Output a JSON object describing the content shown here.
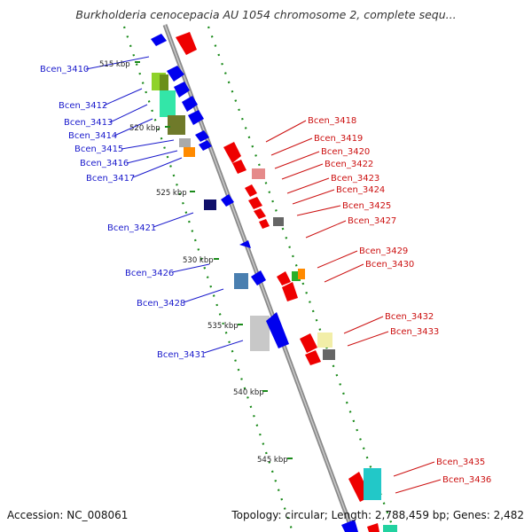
{
  "title": "Burkholderia cenocepacia AU 1054 chromosome 2, complete sequ...",
  "footer": {
    "accession": "Accession: NC_008061",
    "summary": "Topology: circular; Length: 2,788,459 bp; Genes: 2,482"
  },
  "colors": {
    "backbone": "#8a8a8a",
    "left_label": "#1a1acc",
    "right_label": "#cc1111",
    "tick_dots": "#1a8a1a"
  },
  "scale_ticks": [
    "515 kbp",
    "520 kbp",
    "525 kbp",
    "530 kbp",
    "535 kbp",
    "540 kbp",
    "545 kbp"
  ],
  "left_genes": [
    "Bcen_3410",
    "Bcen_3412",
    "Bcen_3413",
    "Bcen_3414",
    "Bcen_3415",
    "Bcen_3416",
    "Bcen_3417",
    "Bcen_3421",
    "Bcen_3426",
    "Bcen_3428",
    "Bcen_3431"
  ],
  "right_genes": [
    "Bcen_3418",
    "Bcen_3419",
    "Bcen_3420",
    "Bcen_3422",
    "Bcen_3423",
    "Bcen_3424",
    "Bcen_3425",
    "Bcen_3427",
    "Bcen_3429",
    "Bcen_3430",
    "Bcen_3432",
    "Bcen_3433",
    "Bcen_3435",
    "Bcen_3436"
  ]
}
